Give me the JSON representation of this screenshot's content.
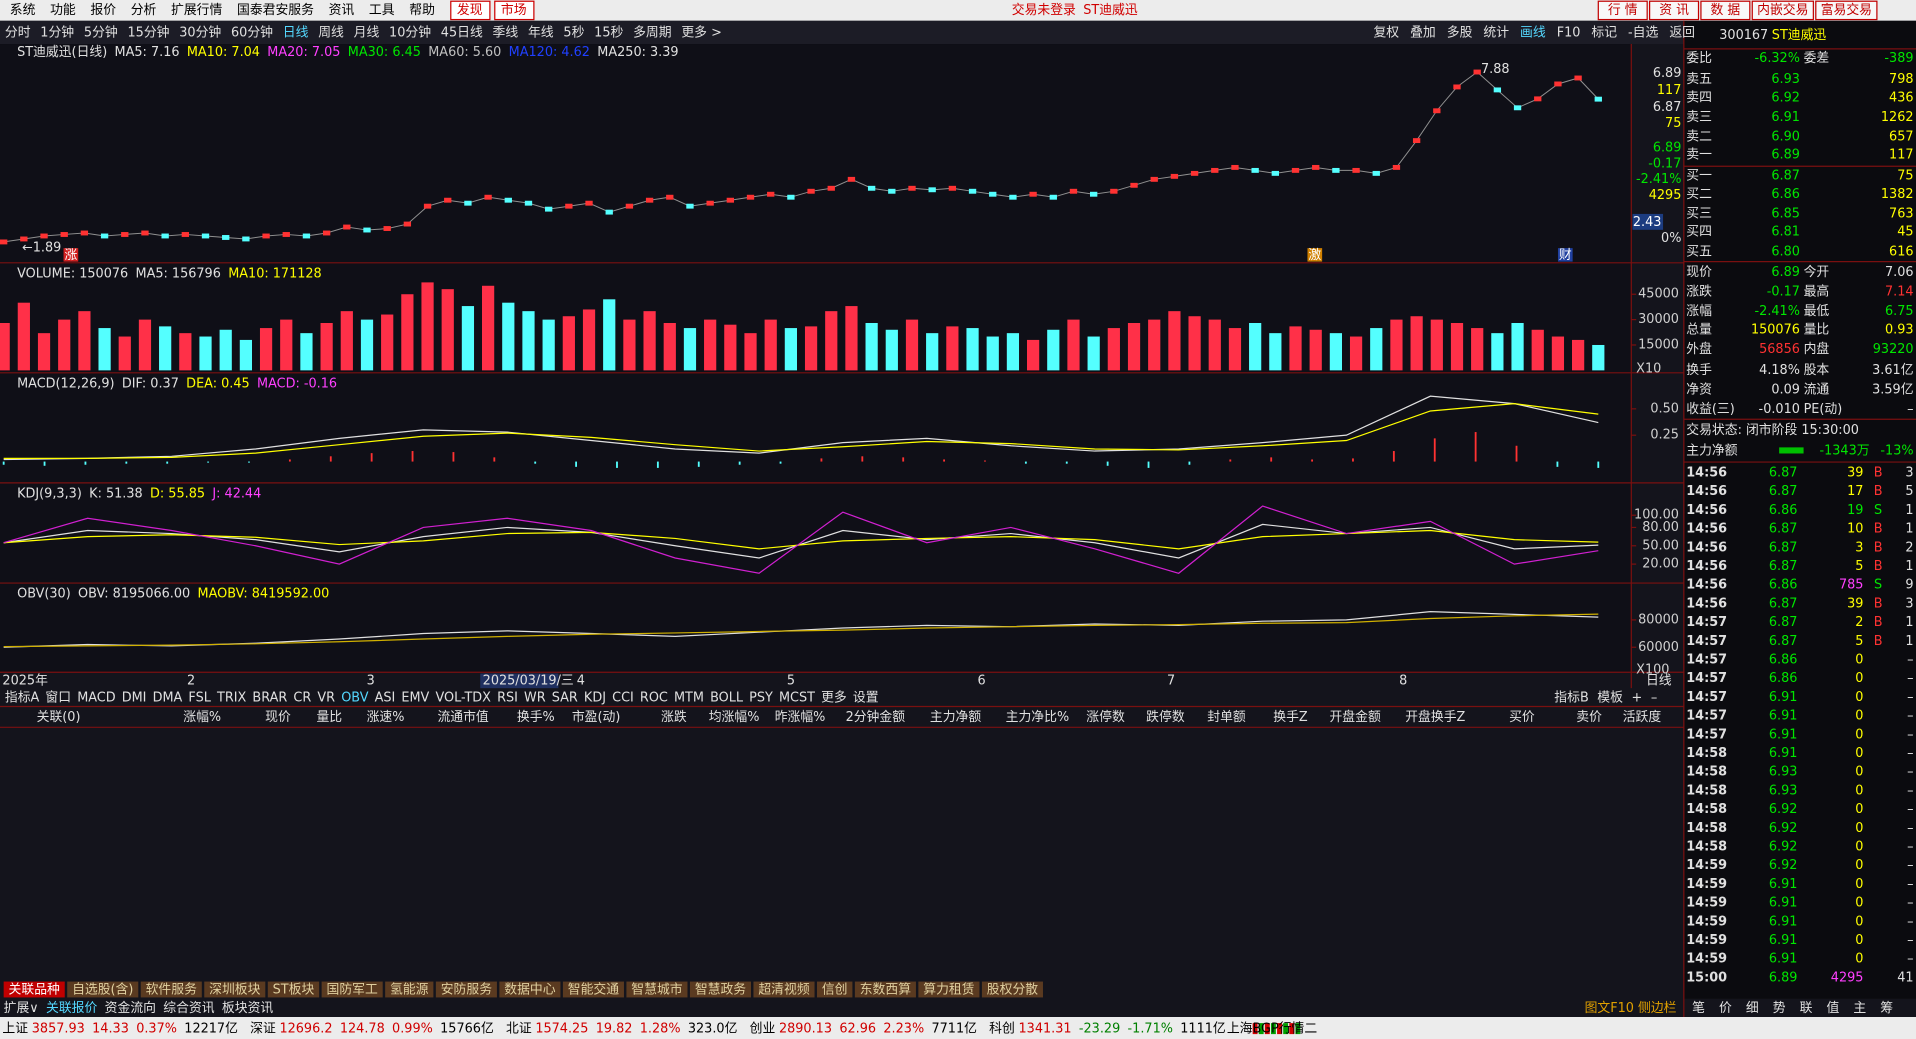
{
  "menu": {
    "items": [
      "系统",
      "功能",
      "报价",
      "分析",
      "扩展行情",
      "国泰君安服务",
      "资讯",
      "工具",
      "帮助"
    ],
    "hot": [
      "发现",
      "市场"
    ],
    "login": "交易未登录",
    "stock": "ST迪威迅",
    "buttons": [
      "行 情",
      "资 讯",
      "数 据",
      "内嵌交易",
      "富易交易"
    ]
  },
  "periods": [
    "分时",
    "1分钟",
    "5分钟",
    "15分钟",
    "30分钟",
    "60分钟",
    "日线",
    "周线",
    "月线",
    "10分钟",
    "45日线",
    "季线",
    "年线",
    "5秒",
    "15秒",
    "多周期",
    "更多 >"
  ],
  "toolbar": [
    "复权",
    "叠加",
    "多股",
    "统计",
    "画线",
    "F10",
    "标记",
    "-自选",
    "返回"
  ],
  "quote_header": {
    "code": "300167",
    "name": "ST迪威迅"
  },
  "chart": {
    "kline": {
      "legend": [
        {
          "label": "ST迪威迅(日线)",
          "color": "#e0e0e0"
        },
        {
          "label": "MA5: 7.16",
          "color": "#e0e0e0"
        },
        {
          "label": "MA10: 7.04",
          "color": "#ffff00"
        },
        {
          "label": "MA20: 7.05",
          "color": "#ff40ff"
        },
        {
          "label": "MA30: 6.45",
          "color": "#00e600"
        },
        {
          "label": "MA60: 5.60",
          "color": "#c0c0c0"
        },
        {
          "label": "MA120: 4.62",
          "color": "#2040ff"
        },
        {
          "label": "MA250: 3.39",
          "color": "#e0e0e0"
        }
      ],
      "close": [
        2.1,
        2.2,
        2.3,
        2.35,
        2.4,
        2.3,
        2.35,
        2.4,
        2.3,
        2.35,
        2.3,
        2.25,
        2.2,
        2.3,
        2.35,
        2.3,
        2.4,
        2.6,
        2.5,
        2.55,
        2.7,
        3.3,
        3.5,
        3.4,
        3.6,
        3.5,
        3.4,
        3.2,
        3.3,
        3.4,
        3.1,
        3.3,
        3.5,
        3.6,
        3.3,
        3.4,
        3.5,
        3.6,
        3.7,
        3.6,
        3.8,
        3.9,
        4.2,
        3.9,
        3.8,
        3.9,
        3.85,
        3.9,
        3.8,
        3.7,
        3.6,
        3.7,
        3.6,
        3.8,
        3.7,
        3.8,
        4.0,
        4.2,
        4.3,
        4.4,
        4.5,
        4.6,
        4.5,
        4.4,
        4.5,
        4.6,
        4.5,
        4.5,
        4.4,
        4.6,
        5.5,
        6.5,
        7.3,
        7.8,
        7.2,
        6.6,
        6.9,
        7.4,
        7.6,
        6.89
      ],
      "ylim": [
        1.4,
        8.74
      ],
      "high": "7.88",
      "low": "←1.89",
      "side_labels": [
        {
          "label": "6.89",
          "color": "#e0e0e0"
        },
        {
          "label": "117",
          "color": "#ffff00"
        },
        {
          "label": "6.87",
          "color": "#e0e0e0"
        },
        {
          "label": "75",
          "color": "#ffff00"
        },
        {
          "label": "6.89",
          "color": "#00e600"
        },
        {
          "label": "-0.17",
          "color": "#00e600"
        },
        {
          "label": "-2.41%",
          "color": "#00e600"
        },
        {
          "label": "4295",
          "color": "#ffff00"
        },
        {
          "label": "0%",
          "color": "#e0e0e0"
        }
      ],
      "last": "2.43",
      "events": [
        "涨",
        "激",
        "财"
      ]
    },
    "volume": {
      "legend": [
        {
          "label": "VOLUME: 150076",
          "color": "#e0e0e0"
        },
        {
          "label": "MA5: 156796",
          "color": "#e0e0e0"
        },
        {
          "label": "MA10: 171128",
          "color": "#ffff00"
        }
      ],
      "values": [
        28000,
        40000,
        22000,
        30000,
        35000,
        25000,
        20000,
        30000,
        26000,
        22000,
        20000,
        24000,
        18000,
        25000,
        30000,
        22000,
        28000,
        35000,
        30000,
        33000,
        45000,
        52000,
        48000,
        38000,
        50000,
        40000,
        35000,
        30000,
        32000,
        36000,
        42000,
        30000,
        35000,
        28000,
        25000,
        30000,
        27000,
        22000,
        30000,
        25000,
        26000,
        35000,
        38000,
        28000,
        24000,
        30000,
        22000,
        26000,
        25000,
        20000,
        22000,
        18000,
        24000,
        30000,
        20000,
        25000,
        28000,
        30000,
        35000,
        32000,
        30000,
        25000,
        28000,
        22000,
        26000,
        24000,
        22000,
        20000,
        25000,
        30000,
        32000,
        30000,
        28000,
        25000,
        22000,
        28000,
        24000,
        20000,
        18000,
        15008
      ],
      "ylim": [
        0,
        62850
      ],
      "yticks": [
        15000,
        30000,
        45000
      ],
      "unit": "X10"
    },
    "macd": {
      "legend": [
        {
          "label": "MACD(12,26,9)",
          "color": "#e0e0e0"
        },
        {
          "label": "DIF: 0.37",
          "color": "#e0e0e0"
        },
        {
          "label": "DEA: 0.45",
          "color": "#ffff00"
        },
        {
          "label": "MACD: -0.16",
          "color": "#ff40ff"
        }
      ],
      "lines": [
        {
          "color": "#e0e0e0",
          "values": [
            0.02,
            0.03,
            0.05,
            0.12,
            0.22,
            0.3,
            0.28,
            0.2,
            0.12,
            0.08,
            0.18,
            0.22,
            0.15,
            0.1,
            0.12,
            0.18,
            0.25,
            0.62,
            0.55,
            0.37
          ]
        },
        {
          "color": "#ffff00",
          "values": [
            0.03,
            0.03,
            0.04,
            0.08,
            0.16,
            0.24,
            0.27,
            0.23,
            0.16,
            0.1,
            0.14,
            0.19,
            0.17,
            0.12,
            0.11,
            0.15,
            0.2,
            0.48,
            0.55,
            0.45
          ]
        }
      ],
      "hist": [
        -0.03,
        -0.04,
        -0.03,
        -0.02,
        -0.02,
        -0.01,
        -0.01,
        0.02,
        0.05,
        0.08,
        0.1,
        0.09,
        0.04,
        -0.02,
        -0.05,
        -0.06,
        -0.06,
        -0.05,
        -0.03,
        -0.02,
        0.03,
        0.05,
        0.04,
        0.02,
        0.01,
        -0.02,
        -0.02,
        -0.04,
        -0.06,
        -0.03,
        0.02,
        0.04,
        0.02,
        0.03,
        0.1,
        0.22,
        0.28,
        0.15,
        -0.05,
        -0.06
      ],
      "ylim": [
        -0.19,
        0.83
      ],
      "yticks": [
        0.25,
        {
          "value": 0.5,
          "label": "0.50"
        }
      ]
    },
    "kdj": {
      "legend": [
        {
          "label": "KDJ(9,3,3)",
          "color": "#e0e0e0"
        },
        {
          "label": "K: 51.38",
          "color": "#e0e0e0"
        },
        {
          "label": "D: 55.85",
          "color": "#ffff00"
        },
        {
          "label": "J: 42.44",
          "color": "#ff40ff"
        }
      ],
      "lines": [
        {
          "color": "#e0e0e0",
          "values": [
            55,
            75,
            70,
            60,
            40,
            65,
            80,
            72,
            50,
            30,
            75,
            60,
            70,
            55,
            30,
            85,
            70,
            80,
            45,
            51
          ]
        },
        {
          "color": "#ffff00",
          "values": [
            55,
            65,
            68,
            64,
            52,
            58,
            70,
            72,
            62,
            45,
            58,
            62,
            65,
            60,
            45,
            65,
            70,
            75,
            60,
            56
          ]
        },
        {
          "color": "#d020d0",
          "values": [
            55,
            95,
            75,
            50,
            20,
            80,
            95,
            75,
            30,
            5,
            105,
            55,
            80,
            45,
            5,
            115,
            70,
            90,
            20,
            42
          ]
        }
      ],
      "ylim": [
        -9,
        151
      ],
      "yticks": [
        {
          "value": 20,
          "label": "20.00"
        },
        {
          "value": 50,
          "label": "50.00"
        },
        {
          "value": 80,
          "label": "80.00"
        },
        {
          "value": 100,
          "label": "100.00"
        }
      ]
    },
    "obv": {
      "legend": [
        {
          "label": "OBV(30)",
          "color": "#e0e0e0"
        },
        {
          "label": "OBV: 8195066.00",
          "color": "#e0e0e0"
        },
        {
          "label": "MAOBV: 8419592.00",
          "color": "#ffff00"
        }
      ],
      "lines": [
        {
          "color": "#e0e0e0",
          "values": [
            60000,
            62000,
            61000,
            63000,
            66000,
            70000,
            72000,
            70000,
            68000,
            71000,
            74000,
            76000,
            75000,
            77000,
            76000,
            79000,
            80000,
            86000,
            84000,
            81951
          ]
        },
        {
          "color": "#d0b000",
          "values": [
            60500,
            61000,
            61500,
            62500,
            64000,
            66000,
            68000,
            69500,
            70500,
            71500,
            72500,
            74000,
            75000,
            76000,
            76500,
            77500,
            78000,
            81000,
            83000,
            84196
          ]
        }
      ],
      "ylim": [
        42600,
        106000
      ],
      "yticks": [
        60000,
        80000
      ],
      "unit": "X100"
    },
    "dates": [
      "2025年",
      "2",
      "3",
      "2025/03/19/三",
      "4",
      "5",
      "6",
      "7",
      "8"
    ],
    "side_tab": "日线"
  },
  "indicator_tabs": [
    "指标A",
    "窗口",
    "MACD",
    "DMI",
    "DMA",
    "FSL",
    "TRIX",
    "BRAR",
    "CR",
    "VR",
    "OBV",
    "ASI",
    "EMV",
    "VOL-TDX",
    "RSI",
    "WR",
    "SAR",
    "KDJ",
    "CCI",
    "ROC",
    "MTM",
    "BOLL",
    "PSY",
    "MCST",
    "更多",
    "设置"
  ],
  "indicator_right": [
    "指标B",
    "模板",
    "+",
    "–"
  ],
  "table_header": [
    "关联(0)",
    "涨幅%",
    "现价",
    "量比",
    "涨速%",
    "流通市值",
    "换手%",
    "市盈(动)",
    "涨跌",
    "均涨幅%",
    "昨涨幅%",
    "2分钟金额",
    "主力净额",
    "主力净比%",
    "涨停数",
    "跌停数",
    "封单额",
    "换手Z",
    "开盘金额",
    "开盘换手Z",
    "买价",
    "卖价",
    "活跃度"
  ],
  "sector_tabs": [
    "关联品种",
    "自选股(含)",
    "软件服务",
    "深圳板块",
    "ST板块",
    "国防军工",
    "氢能源",
    "安防服务",
    "数据中心",
    "智能交通",
    "智慧城市",
    "智慧政务",
    "超清视频",
    "信创",
    "东数西算",
    "算力租赁",
    "股权分散"
  ],
  "bottom_tabs": [
    "扩展∨",
    "关联报价",
    "资金流向",
    "综合资讯",
    "板块资讯"
  ],
  "bottom_right": "图文F10 侧边栏",
  "side_tabs": [
    "笔",
    "价",
    "细",
    "势",
    "联",
    "值",
    "主",
    "筹"
  ],
  "order_book": {
    "ratio": [
      {
        "label": "委比",
        "value": "-6.32%"
      },
      {
        "label": "委差",
        "value": "-389"
      }
    ],
    "asks": [
      [
        "卖五",
        "6.93",
        "798"
      ],
      [
        "卖四",
        "6.92",
        "436"
      ],
      [
        "卖三",
        "6.91",
        "1262"
      ],
      [
        "卖二",
        "6.90",
        "657"
      ],
      [
        "卖一",
        "6.89",
        "117"
      ]
    ],
    "bids": [
      [
        "买一",
        "6.87",
        "75"
      ],
      [
        "买二",
        "6.86",
        "1382"
      ],
      [
        "买三",
        "6.85",
        "763"
      ],
      [
        "买四",
        "6.81",
        "45"
      ],
      [
        "买五",
        "6.80",
        "616"
      ]
    ]
  },
  "stats": [
    [
      {
        "label": "现价",
        "value": "6.89",
        "color": "#00e600"
      },
      {
        "label": "今开",
        "value": "7.06",
        "color": "#e0e0e0"
      }
    ],
    [
      {
        "label": "涨跌",
        "value": "-0.17",
        "color": "#00e600"
      },
      {
        "label": "最高",
        "value": "7.14",
        "color": "#ff3232"
      }
    ],
    [
      {
        "label": "涨幅",
        "value": "-2.41%",
        "color": "#00e600"
      },
      {
        "label": "最低",
        "value": "6.75",
        "color": "#00e600"
      }
    ],
    [
      {
        "label": "总量",
        "value": "150076",
        "color": "#ffff00"
      },
      {
        "label": "量比",
        "value": "0.93",
        "color": "#ffff00"
      }
    ],
    [
      {
        "label": "外盘",
        "value": "56856",
        "color": "#ff3232"
      },
      {
        "label": "内盘",
        "value": "93220",
        "color": "#00e600"
      }
    ],
    [
      {
        "label": "换手",
        "value": "4.18%",
        "color": "#e0e0e0"
      },
      {
        "label": "股本",
        "value": "3.61亿",
        "color": "#e0e0e0"
      }
    ],
    [
      {
        "label": "净资",
        "value": "0.09",
        "color": "#e0e0e0"
      },
      {
        "label": "流通",
        "value": "3.59亿",
        "color": "#e0e0e0"
      }
    ],
    [
      {
        "label": "收益(三)",
        "value": "-0.010",
        "color": "#e0e0e0"
      },
      {
        "label": "PE(动)",
        "value": "–",
        "color": "#e0e0e0"
      }
    ]
  ],
  "trade_state": "交易状态: 闭市阶段 15:30:00",
  "main_flow": {
    "label": "主力净额",
    "value": "-1343万",
    "ratio": "-13%"
  },
  "ticks": [
    {
      "time": "14:56",
      "price": "6.87",
      "vol": "39",
      "flag": "B",
      "num": "3"
    },
    {
      "time": "14:56",
      "price": "6.87",
      "vol": "17",
      "flag": "B",
      "num": "5"
    },
    {
      "time": "14:56",
      "price": "6.86",
      "vol": "19",
      "flag": "S",
      "num": "1"
    },
    {
      "time": "14:56",
      "price": "6.87",
      "vol": "10",
      "flag": "B",
      "num": "1"
    },
    {
      "time": "14:56",
      "price": "6.87",
      "vol": "3",
      "flag": "B",
      "num": "2"
    },
    {
      "time": "14:56",
      "price": "6.87",
      "vol": "5",
      "flag": "B",
      "num": "1"
    },
    {
      "time": "14:56",
      "price": "6.86",
      "vol": "785",
      "flag": "S",
      "num": "9"
    },
    {
      "time": "14:56",
      "price": "6.87",
      "vol": "39",
      "flag": "B",
      "num": "3"
    },
    {
      "time": "14:57",
      "price": "6.87",
      "vol": "2",
      "flag": "B",
      "num": "1"
    },
    {
      "time": "14:57",
      "price": "6.87",
      "vol": "5",
      "flag": "B",
      "num": "1"
    },
    {
      "time": "14:57",
      "price": "6.86",
      "vol": "0",
      "num": "–"
    },
    {
      "time": "14:57",
      "price": "6.86",
      "vol": "0",
      "num": "–"
    },
    {
      "time": "14:57",
      "price": "6.91",
      "vol": "0",
      "num": "–"
    },
    {
      "time": "14:57",
      "price": "6.91",
      "vol": "0",
      "num": "–"
    },
    {
      "time": "14:57",
      "price": "6.91",
      "vol": "0",
      "num": "–"
    },
    {
      "time": "14:58",
      "price": "6.91",
      "vol": "0",
      "num": "–"
    },
    {
      "time": "14:58",
      "price": "6.93",
      "vol": "0",
      "num": "–"
    },
    {
      "time": "14:58",
      "price": "6.93",
      "vol": "0",
      "num": "–"
    },
    {
      "time": "14:58",
      "price": "6.92",
      "vol": "0",
      "num": "–"
    },
    {
      "time": "14:58",
      "price": "6.92",
      "vol": "0",
      "num": "–"
    },
    {
      "time": "14:58",
      "price": "6.92",
      "vol": "0",
      "num": "–"
    },
    {
      "time": "14:59",
      "price": "6.92",
      "vol": "0",
      "num": "–"
    },
    {
      "time": "14:59",
      "price": "6.91",
      "vol": "0",
      "num": "–"
    },
    {
      "time": "14:59",
      "price": "6.91",
      "vol": "0",
      "num": "–"
    },
    {
      "time": "14:59",
      "price": "6.91",
      "vol": "0",
      "num": "–"
    },
    {
      "time": "14:59",
      "price": "6.91",
      "vol": "0",
      "num": "–"
    },
    {
      "time": "14:59",
      "price": "6.91",
      "vol": "0",
      "num": "–"
    },
    {
      "time": "15:00",
      "price": "6.89",
      "vol": "4295",
      "num": "41"
    }
  ],
  "status_bar": [
    {
      "name": "上证",
      "values": [
        "3857.93",
        "14.33",
        "0.37%"
      ],
      "amount": "12217亿"
    },
    {
      "name": "深证",
      "values": [
        "12696.2",
        "124.78",
        "0.99%"
      ],
      "amount": "15766亿"
    },
    {
      "name": "北证",
      "values": [
        "1574.25",
        "19.82",
        "1.28%"
      ],
      "amount": "323.0亿"
    },
    {
      "name": "创业",
      "values": [
        "2890.13",
        "62.96",
        "2.23%"
      ],
      "amount": "7711亿"
    },
    {
      "name": "科创",
      "values": [
        "1341.31",
        "-23.29",
        "-1.71%"
      ],
      "amount": "1111亿"
    }
  ],
  "server": "上海BGP行情二"
}
